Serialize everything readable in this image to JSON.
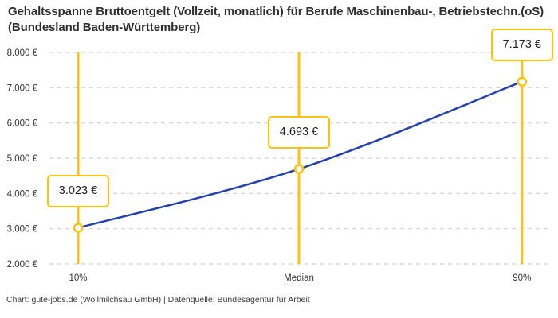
{
  "title": "Gehaltsspanne Bruttoentgelt (Vollzeit, monatlich) für Berufe Maschinenbau-, Betriebstechn.(oS) (Bundesland Baden-Württemberg)",
  "footer": "Chart: gute-jobs.de (Wollmilchsau GmbH) | Datenquelle: Bundesagentur für Arbeit",
  "colors": {
    "accent_yellow": "#ffc20e",
    "line_blue": "#2342ae",
    "grid_gray": "#c9c9c9",
    "tick_text": "#333333",
    "marker_fill": "#ffffff"
  },
  "chart_data": {
    "type": "line",
    "title": "Gehaltsspanne Bruttoentgelt (Vollzeit, monatlich) für Berufe Maschinenbau-, Betriebstechn.(oS) (Bundesland Baden-Württemberg)",
    "categories": [
      "10%",
      "Median",
      "90%"
    ],
    "values": [
      3023,
      4693,
      7173
    ],
    "value_labels": [
      "3.023 €",
      "4.693 €",
      "7.173 €"
    ],
    "series": [
      {
        "name": "Bruttoentgelt",
        "values": [
          3023,
          4693,
          7173
        ]
      }
    ],
    "ylim": [
      2000,
      8000
    ],
    "y_tick_step": 1000,
    "y_tick_labels": [
      "2.000 €",
      "3.000 €",
      "4.000 €",
      "5.000 €",
      "6.000 €",
      "7.000 €",
      "8.000 €"
    ],
    "xlabel": "",
    "ylabel": "",
    "grid": "horizontal-dashed",
    "legend": "none",
    "annotations": "value boxes above each percentile point connected by vertical accent lines"
  }
}
